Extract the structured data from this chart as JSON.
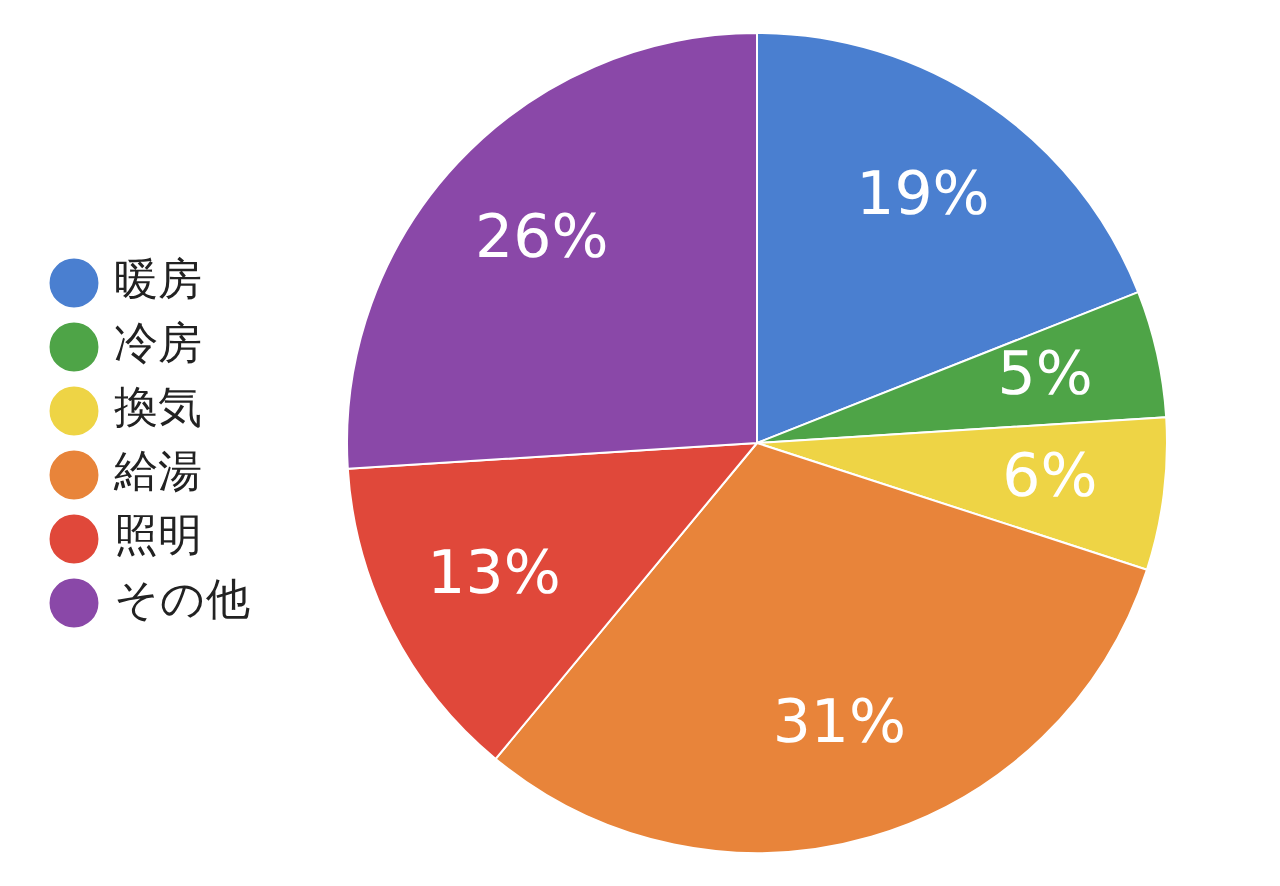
{
  "chart_data": {
    "type": "pie",
    "categories": [
      "暖房",
      "冷房",
      "換気",
      "給湯",
      "照明",
      "その他"
    ],
    "values": [
      19,
      5,
      6,
      31,
      13,
      26
    ],
    "value_labels": [
      "19%",
      "5%",
      "6%",
      "31%",
      "13%",
      "26%"
    ],
    "colors": [
      "#4a7fd0",
      "#4ea447",
      "#eed445",
      "#e8843a",
      "#e0483a",
      "#8a48a8"
    ],
    "legend": "left"
  }
}
